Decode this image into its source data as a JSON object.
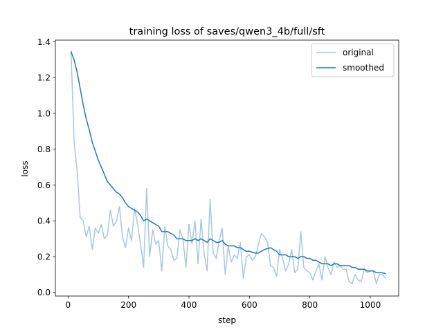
{
  "chart_data": {
    "type": "line",
    "title": "training loss of saves/qwen3_4b/full/sft",
    "xlabel": "step",
    "ylabel": "loss",
    "xlim": [
      -42,
      1094
    ],
    "ylim": [
      -0.02,
      1.41
    ],
    "xticks": [
      0,
      200,
      400,
      600,
      800,
      1000
    ],
    "yticks": [
      0.0,
      0.2,
      0.4,
      0.6,
      0.8,
      1.0,
      1.2,
      1.4
    ],
    "xtick_labels": [
      "0",
      "200",
      "400",
      "600",
      "800",
      "1000"
    ],
    "ytick_labels": [
      "0.0",
      "0.2",
      "0.4",
      "0.6",
      "0.8",
      "1.0",
      "1.2",
      "1.4"
    ],
    "legend_position": "top-right",
    "grid": false,
    "series": [
      {
        "name": "original",
        "color": "#a6c8e0",
        "x": [
          10,
          20,
          30,
          40,
          50,
          60,
          70,
          80,
          90,
          100,
          110,
          120,
          130,
          140,
          150,
          160,
          170,
          180,
          190,
          200,
          210,
          220,
          230,
          240,
          250,
          260,
          270,
          280,
          290,
          300,
          310,
          320,
          330,
          340,
          350,
          360,
          370,
          380,
          390,
          400,
          410,
          420,
          430,
          440,
          450,
          460,
          470,
          480,
          490,
          500,
          510,
          520,
          530,
          540,
          550,
          560,
          570,
          580,
          590,
          600,
          610,
          620,
          630,
          640,
          650,
          660,
          670,
          680,
          690,
          700,
          710,
          720,
          730,
          740,
          750,
          760,
          770,
          780,
          790,
          800,
          810,
          820,
          830,
          840,
          850,
          860,
          870,
          880,
          890,
          900,
          910,
          920,
          930,
          940,
          950,
          960,
          970,
          980,
          990,
          1000,
          1010,
          1020,
          1030,
          1040,
          1050
        ],
        "values": [
          1.34,
          0.84,
          0.68,
          0.42,
          0.4,
          0.31,
          0.37,
          0.24,
          0.36,
          0.33,
          0.38,
          0.3,
          0.32,
          0.46,
          0.37,
          0.4,
          0.48,
          0.31,
          0.25,
          0.36,
          0.29,
          0.47,
          0.38,
          0.27,
          0.14,
          0.58,
          0.2,
          0.35,
          0.27,
          0.29,
          0.12,
          0.37,
          0.26,
          0.24,
          0.18,
          0.19,
          0.35,
          0.3,
          0.14,
          0.38,
          0.27,
          0.4,
          0.16,
          0.41,
          0.22,
          0.12,
          0.52,
          0.22,
          0.19,
          0.29,
          0.36,
          0.1,
          0.26,
          0.17,
          0.21,
          0.19,
          0.28,
          0.08,
          0.2,
          0.21,
          0.18,
          0.2,
          0.27,
          0.33,
          0.31,
          0.28,
          0.15,
          0.14,
          0.09,
          0.24,
          0.19,
          0.12,
          0.16,
          0.24,
          0.11,
          0.13,
          0.34,
          0.14,
          0.12,
          0.11,
          0.07,
          0.12,
          0.16,
          0.07,
          0.2,
          0.14,
          0.1,
          0.17,
          0.14,
          0.15,
          0.13,
          0.13,
          0.06,
          0.05,
          0.1,
          0.07,
          0.06,
          0.13,
          0.11,
          0.12,
          0.12,
          0.05,
          0.1,
          0.1,
          0.08
        ]
      },
      {
        "name": "smoothed",
        "color": "#1f77b4",
        "x": [
          10,
          20,
          30,
          40,
          50,
          60,
          70,
          80,
          90,
          100,
          110,
          120,
          130,
          140,
          150,
          160,
          170,
          180,
          190,
          200,
          210,
          220,
          230,
          240,
          250,
          260,
          270,
          280,
          290,
          300,
          310,
          320,
          330,
          340,
          350,
          360,
          370,
          380,
          390,
          400,
          410,
          420,
          430,
          440,
          450,
          460,
          470,
          480,
          490,
          500,
          510,
          520,
          530,
          540,
          550,
          560,
          570,
          580,
          590,
          600,
          610,
          620,
          630,
          640,
          650,
          660,
          670,
          680,
          690,
          700,
          710,
          720,
          730,
          740,
          750,
          760,
          770,
          780,
          790,
          800,
          810,
          820,
          830,
          840,
          850,
          860,
          870,
          880,
          890,
          900,
          910,
          920,
          930,
          940,
          950,
          960,
          970,
          980,
          990,
          1000,
          1010,
          1020,
          1030,
          1040,
          1050
        ],
        "values": [
          1.345,
          1.3,
          1.23,
          1.14,
          1.05,
          0.97,
          0.91,
          0.84,
          0.79,
          0.74,
          0.7,
          0.66,
          0.62,
          0.6,
          0.58,
          0.56,
          0.55,
          0.53,
          0.5,
          0.48,
          0.47,
          0.46,
          0.45,
          0.43,
          0.4,
          0.41,
          0.4,
          0.39,
          0.38,
          0.37,
          0.34,
          0.34,
          0.34,
          0.33,
          0.32,
          0.3,
          0.3,
          0.3,
          0.29,
          0.29,
          0.29,
          0.3,
          0.29,
          0.3,
          0.29,
          0.28,
          0.3,
          0.29,
          0.28,
          0.28,
          0.29,
          0.27,
          0.26,
          0.26,
          0.26,
          0.25,
          0.25,
          0.24,
          0.23,
          0.23,
          0.225,
          0.22,
          0.22,
          0.23,
          0.24,
          0.245,
          0.25,
          0.24,
          0.23,
          0.21,
          0.21,
          0.21,
          0.2,
          0.2,
          0.2,
          0.19,
          0.2,
          0.2,
          0.19,
          0.19,
          0.18,
          0.18,
          0.17,
          0.16,
          0.16,
          0.16,
          0.15,
          0.16,
          0.16,
          0.15,
          0.15,
          0.15,
          0.15,
          0.14,
          0.14,
          0.13,
          0.13,
          0.13,
          0.12,
          0.12,
          0.12,
          0.11,
          0.11,
          0.11,
          0.105
        ]
      }
    ]
  }
}
